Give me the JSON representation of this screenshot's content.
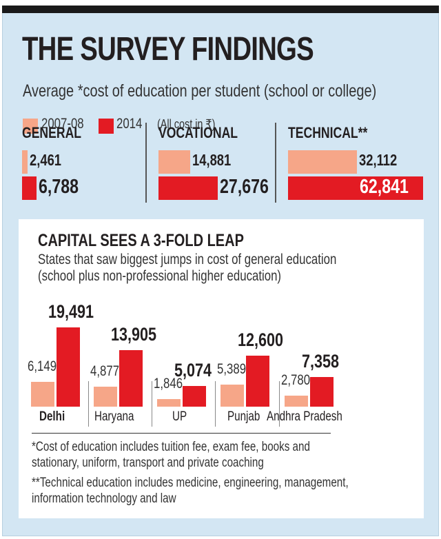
{
  "colors": {
    "y2007": "#f6a688",
    "y2014": "#e31b23",
    "background": "#d3e6f3"
  },
  "header": {
    "title": "THE SURVEY FINDINGS",
    "subtitle": "Average *cost of education per student (school or college)",
    "legend": {
      "a": "2007-08",
      "b": "2014",
      "note": "(All cost in ₹)"
    }
  },
  "chart_data": [
    {
      "type": "bar",
      "orientation": "horizontal",
      "title": "THE SURVEY FINDINGS",
      "categories": [
        "GENERAL",
        "VOCATIONAL",
        "TECHNICAL**"
      ],
      "series": [
        {
          "name": "2007-08",
          "values": [
            2461,
            14881,
            32112
          ],
          "labels": [
            "2,461",
            "14,881",
            "32,112"
          ]
        },
        {
          "name": "2014",
          "values": [
            6788,
            27676,
            62841
          ],
          "labels": [
            "6,788",
            "27,676",
            "62,841"
          ]
        }
      ],
      "unit": "₹"
    },
    {
      "type": "bar",
      "title": "CAPITAL SEES A 3-FOLD LEAP",
      "subtitle": [
        "States that saw biggest jumps in cost of general education",
        "(school plus non-professional higher education)"
      ],
      "categories": [
        "Delhi",
        "Haryana",
        "UP",
        "Punjab",
        "Andhra Pradesh"
      ],
      "series": [
        {
          "name": "2007-08",
          "values": [
            6149,
            4877,
            1846,
            5389,
            2780
          ],
          "labels": [
            "6,149",
            "4,877",
            "1,846",
            "5,389",
            "2,780"
          ]
        },
        {
          "name": "2014",
          "values": [
            19491,
            13905,
            5074,
            12600,
            7358
          ],
          "labels": [
            "19,491",
            "13,905",
            "5,074",
            "12,600",
            "7,358"
          ]
        }
      ]
    }
  ],
  "footnotes": [
    [
      "*Cost of education includes tuition fee, exam fee, books and",
      "stationary, uniform, transport and private coaching"
    ],
    [
      "**Technical education includes medicine, engineering, management,",
      "information technology and law"
    ]
  ]
}
